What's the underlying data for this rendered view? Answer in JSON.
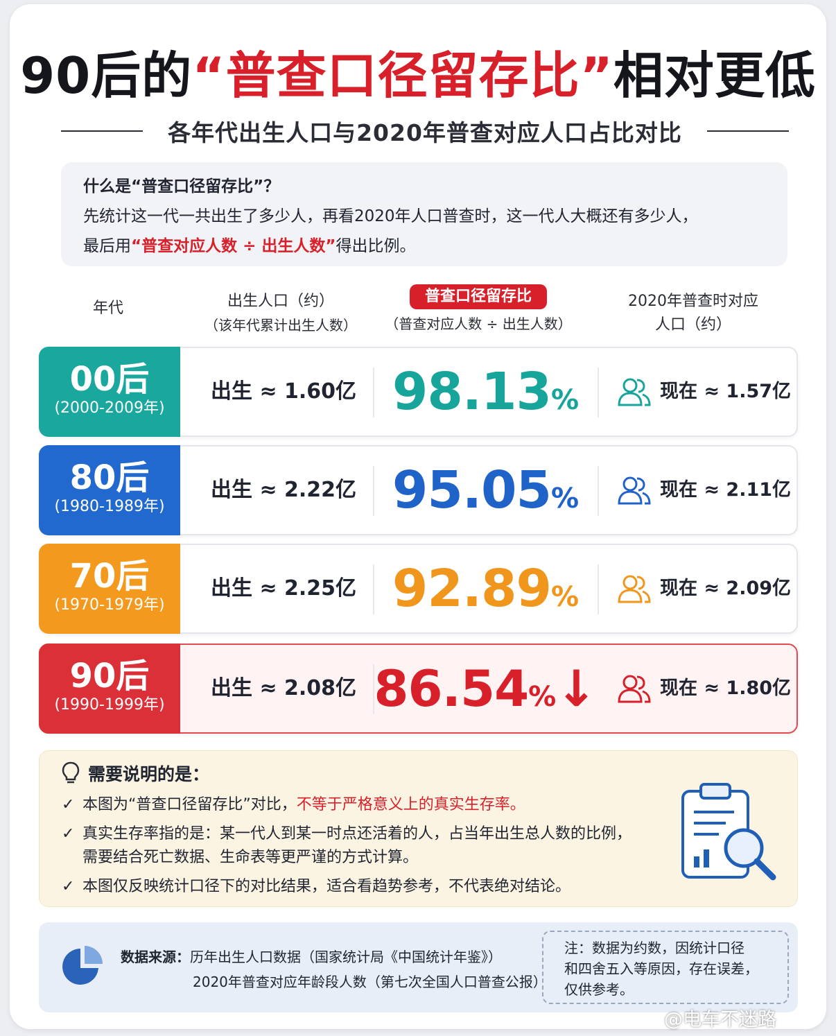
{
  "title": {
    "part1": "90后的",
    "highlight": "“普查口径留存比”",
    "part2": "相对更低"
  },
  "subtitle": "各年代出生人口与2020年普查对应人口占比对比",
  "definition": {
    "question": "什么是“普查口径留存比”？",
    "line1": "先统计这一代一共出生了多少人，再看2020年人口普查时，这一代人大概还有多少人，",
    "line2_prefix": "最后用",
    "line2_formula": "“普查对应人数 ÷ 出生人数”",
    "line2_suffix": "得出比例。"
  },
  "headers": {
    "era": "年代",
    "birth_title": "出生人口（约）",
    "birth_sub": "（该年代累计出生人数）",
    "ratio_title": "普查口径留存比",
    "ratio_sub": "（普查对应人数 ÷ 出生人数）",
    "census_title": "2020年普查时对应",
    "census_sub": "人口（约）"
  },
  "rows": [
    {
      "era": "00后",
      "range": "(2000-2009年)",
      "born": "出生 ≈ 1.60亿",
      "pct": "98.13",
      "unit": "%",
      "arrow": "",
      "now": "现在 ≈ 1.57亿",
      "color": "#17a59b",
      "badge": "#1aa79d"
    },
    {
      "era": "80后",
      "range": "(1980-1989年)",
      "born": "出生 ≈ 2.22亿",
      "pct": "95.05",
      "unit": "%",
      "arrow": "",
      "now": "现在 ≈ 2.11亿",
      "color": "#1f63c9",
      "badge": "#2169cf"
    },
    {
      "era": "70后",
      "range": "(1970-1979年)",
      "born": "出生 ≈ 2.25亿",
      "pct": "92.89",
      "unit": "%",
      "arrow": "",
      "now": "现在 ≈ 2.09亿",
      "color": "#f0961c",
      "badge": "#f39a1e"
    },
    {
      "era": "90后",
      "range": "(1990-1999年)",
      "born": "出生 ≈ 2.08亿",
      "pct": "86.54",
      "unit": "%",
      "arrow": "↓",
      "now": "现在 ≈ 1.80亿",
      "color": "#d7202a",
      "badge": "#dc3038"
    }
  ],
  "notes": {
    "heading": "需要说明的是：",
    "item1_prefix": "本图为“普查口径留存比”对比，",
    "item1_red": "不等于严格意义上的真实生存率。",
    "item2_line1": "真实生存率指的是：某一代人到某一时点还活着的人，占当年出生总人数的比例，",
    "item2_line2": "需要结合死亡数据、生命表等更严谨的方式计算。",
    "item3": "本图仅反映统计口径下的对比结果，适合看趋势参考，不代表绝对结论。",
    "check": "✓"
  },
  "source": {
    "label": "数据来源：",
    "line1": "历年出生人口数据（国家统计局《中国统计年鉴》）",
    "line2": "2020年普查对应年龄段人数（第七次全国人口普查公报）",
    "note_line1": "注：数据为约数，因统计口径",
    "note_line2": "和四舍五入等原因，存在误差，",
    "note_line3": "仅供参考。"
  },
  "watermark": "@电车不迷路",
  "colors": {
    "accent_red": "#d7202a"
  }
}
